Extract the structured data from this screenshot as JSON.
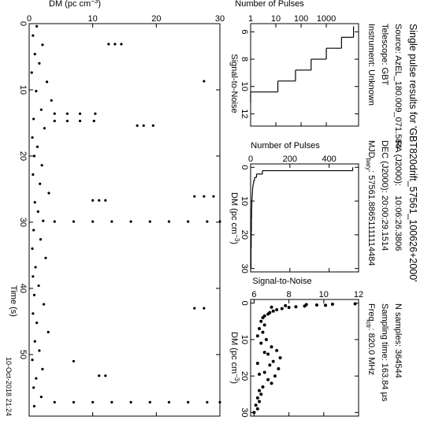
{
  "header": {
    "title": "Single pulse results for 'GBT820drift_57561_100626+2000'",
    "source": "Source: AzEL_180.009_071.584",
    "telescope": "Telescope: GBT",
    "instrument": "Instrument: Unknown",
    "ra_label": "RA (J2000):",
    "ra": "10:06:26.3806",
    "dec_label": "DEC (J2000):",
    "dec": "20:00:29.1514",
    "mjd_label": "MJD",
    "mjd_sub": "bary",
    "mjd_rest": ":  57561.88651111114484",
    "nsamples": "N samples: 364544",
    "tsamp": "Sampling time: 163.84 µs",
    "freq_label": "Freq",
    "freq_sub": "ctr",
    "freq_rest": ": 820.0 MHz",
    "date": "10-Oct-2018 21:24"
  },
  "chart_data": [
    {
      "type": "histogram",
      "x_label": "Signal-to-Noise",
      "y_label": "Number of Pulses",
      "bins": [
        5.6,
        6.4,
        7.2,
        8.0,
        8.8,
        9.6,
        10.4,
        11.2
      ],
      "values": [
        12000,
        4000,
        1000,
        250,
        60,
        12,
        1
      ],
      "color": "#000000",
      "xlim": [
        5.4,
        12.9
      ],
      "xticks": [
        6,
        8,
        10,
        12
      ],
      "ylim": [
        1,
        19000
      ],
      "yticks": [
        1,
        10,
        100,
        1000
      ],
      "log_y": true
    },
    {
      "type": "histogram",
      "x_label": {
        "text": "DM (pc cm",
        "sup": "−3",
        "end": ")"
      },
      "y_label": "Number of Pulses",
      "bins": [
        0,
        1,
        2,
        3,
        4,
        5,
        6,
        7,
        8,
        9,
        10,
        11,
        12,
        13,
        14,
        15,
        16,
        17,
        18,
        19,
        20,
        21,
        22,
        23,
        24,
        25,
        26,
        27,
        28,
        29,
        30
      ],
      "values": [
        520,
        60,
        30,
        20,
        15,
        12,
        10,
        9,
        8,
        7,
        6,
        6,
        5,
        5,
        5,
        4,
        4,
        4,
        4,
        3,
        3,
        3,
        3,
        3,
        2,
        2,
        2,
        2,
        2,
        2
      ],
      "color": "#000000",
      "xlim": [
        -1,
        31
      ],
      "xticks": [
        0,
        10,
        20,
        30
      ],
      "ylim": [
        0,
        550
      ],
      "yticks": [
        0,
        200,
        400
      ],
      "log_y": false
    },
    {
      "type": "scatter",
      "x_label": {
        "text": "DM (pc cm",
        "sup": "−3",
        "end": ")"
      },
      "y_label": "Signal-to-Noise",
      "x": [
        0.2,
        0.3,
        0.5,
        0.6,
        0.8,
        1.0,
        1.2,
        1.5,
        1.8,
        2.2,
        2.6,
        3.0,
        3.5,
        4.0,
        5,
        6,
        7,
        8,
        9,
        10,
        11,
        12,
        13,
        14,
        15,
        16,
        17,
        18,
        19,
        20,
        21,
        22,
        23,
        24,
        25,
        26,
        27,
        28,
        29,
        30,
        0.4,
        0.7,
        1.1,
        13.5,
        16.5,
        19.5
      ],
      "values": [
        11.8,
        10.5,
        9.6,
        10.1,
        8.9,
        8.4,
        8.0,
        7.6,
        7.3,
        7.1,
        6.9,
        6.8,
        6.6,
        6.5,
        6.4,
        6.6,
        6.3,
        6.5,
        6.2,
        6.7,
        6.4,
        7.0,
        7.3,
        6.8,
        7.5,
        7.1,
        6.9,
        7.4,
        6.6,
        7.2,
        6.8,
        7.0,
        6.5,
        6.3,
        6.4,
        6.2,
        6.3,
        6.1,
        6.2,
        6.0,
        9.0,
        7.8,
        7.0,
        6.6,
        6.2,
        6.3
      ],
      "color": "#000000",
      "xlim": [
        -1,
        31
      ],
      "xticks": [
        0,
        10,
        20,
        30
      ],
      "ylim": [
        5.8,
        12
      ],
      "yticks": [
        6,
        8,
        10,
        12
      ],
      "log_y": false
    },
    {
      "type": "scatter",
      "x_label": "Time (s)",
      "y_label": {
        "text": "DM (pc cm",
        "sup": "−3",
        "end": ")"
      },
      "x": [
        0.4,
        1.8,
        3.2,
        4.6,
        6.0,
        7.4,
        8.8,
        10.2,
        11.6,
        13.0,
        14.4,
        15.8,
        17.2,
        18.6,
        20.0,
        21.4,
        22.8,
        24.2,
        25.6,
        27.0,
        28.4,
        29.8,
        31.2,
        32.6,
        34.0,
        35.4,
        36.8,
        38.2,
        39.6,
        41.0,
        42.4,
        43.8,
        45.2,
        46.6,
        48.0,
        49.4,
        50.8,
        52.2,
        53.6,
        55.0,
        56.4,
        57.8,
        13.6,
        13.6,
        13.6,
        13.6,
        14.7,
        14.7,
        14.7,
        14.7,
        29.9,
        29.9,
        29.9,
        29.9,
        29.9,
        29.9,
        29.9,
        29.9,
        29.9,
        29.9,
        57.2,
        57.2,
        57.2,
        57.2,
        57.2,
        57.2,
        57.2,
        57.2,
        57.2,
        57.2,
        26.7,
        26.7,
        26.7,
        26.1,
        26.1,
        26.1,
        3.1,
        3.1,
        3.1,
        15.4,
        15.4,
        15.4,
        8.7,
        43.0,
        43.0,
        51.0,
        53.2,
        53.2
      ],
      "values": [
        1.2,
        0.6,
        2.1,
        0.9,
        1.6,
        0.4,
        2.8,
        1.1,
        3.5,
        1.9,
        0.7,
        2.4,
        0.5,
        1.3,
        0.8,
        2.0,
        0.6,
        1.7,
        3.1,
        0.9,
        1.4,
        2.2,
        0.7,
        1.8,
        0.5,
        2.6,
        1.0,
        0.6,
        1.5,
        0.8,
        2.3,
        0.6,
        1.2,
        3.0,
        0.9,
        1.6,
        0.5,
        2.1,
        1.1,
        0.7,
        1.9,
        0.8,
        4,
        6,
        8,
        10.4,
        4,
        6,
        8,
        10.2,
        4,
        7,
        10,
        13,
        16,
        19,
        22,
        25,
        28,
        30,
        4,
        7,
        10,
        13,
        16,
        19,
        22,
        25,
        28,
        30,
        10,
        11,
        12,
        26,
        27.5,
        29,
        12.5,
        13.5,
        14.5,
        17,
        18,
        19.5,
        27.5,
        26,
        27.5,
        7,
        11,
        12
      ],
      "color": "#000000",
      "xlim": [
        0,
        59.3
      ],
      "xticks": [
        0,
        10,
        20,
        30,
        40,
        50
      ],
      "ylim": [
        0,
        30
      ],
      "yticks": [
        0,
        10,
        20,
        30
      ],
      "log_y": false
    }
  ]
}
